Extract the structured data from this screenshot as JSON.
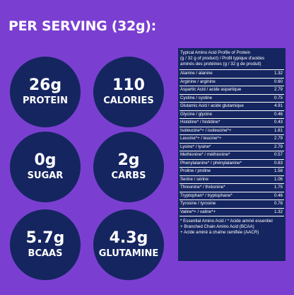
{
  "title": "PER SERVING (32g):",
  "stats": [
    {
      "value": "26g",
      "label": "PROTEIN"
    },
    {
      "value": "110",
      "label": "CALORIES"
    },
    {
      "value": "0g",
      "label": "SUGAR"
    },
    {
      "value": "2g",
      "label": "CARBS"
    },
    {
      "value": "5.7g",
      "label": "BCAAS"
    },
    {
      "value": "4.3g",
      "label": "GLUTAMINE"
    }
  ],
  "amino_table": {
    "header": [
      "Typical Amino Acid Profile of Protein",
      "(g / 32 g of product) / Profil typique d'acides",
      "aminés des protéines (g / 32 g de produit)"
    ],
    "rows": [
      {
        "name": "Alanine / alanine",
        "value": "1.32"
      },
      {
        "name": "Arginine / arginine",
        "value": "0.60"
      },
      {
        "name": "Aspartic Acid / acide aspartique",
        "value": "2.79"
      },
      {
        "name": "Cystine / cystine",
        "value": "0.75"
      },
      {
        "name": "Glutamic Acid / acide glutamique",
        "value": "4.91"
      },
      {
        "name": "Glycine / glycine",
        "value": "0.46"
      },
      {
        "name": "Histidine* / histidine*",
        "value": "0.43"
      },
      {
        "name": "Isoleucine*+ / isoleucine*+",
        "value": "1.61"
      },
      {
        "name": "Leucine*+ / leucine*+",
        "value": "2.79"
      },
      {
        "name": "Lysine* / lysine*",
        "value": "2.79"
      },
      {
        "name": "Methionine* / méthionine*",
        "value": "0.57"
      },
      {
        "name": "Phenylalanine* / phénylalanine*",
        "value": "0.83"
      },
      {
        "name": "Proline / proline",
        "value": "1.58"
      },
      {
        "name": "Serine / sérine",
        "value": "1.06"
      },
      {
        "name": "Threonine* / thréonine*",
        "value": "1.75"
      },
      {
        "name": "Tryptophan* / tryptophane*",
        "value": "0.46"
      },
      {
        "name": "Tyrosine / tyrosine",
        "value": "0.78"
      },
      {
        "name": "Valine*+ / valine*+",
        "value": "1.32"
      }
    ],
    "footnotes": [
      "* Essential Amino Acid / * Acide aminé essentiel",
      "+ Branched Chain Amino Acid (BCAA)",
      "+ Acide aminé à chaîne ramifiée (AACR)"
    ]
  },
  "colors": {
    "background": "#7a3fd1",
    "circle": "#152560",
    "text": "#ffffff"
  }
}
